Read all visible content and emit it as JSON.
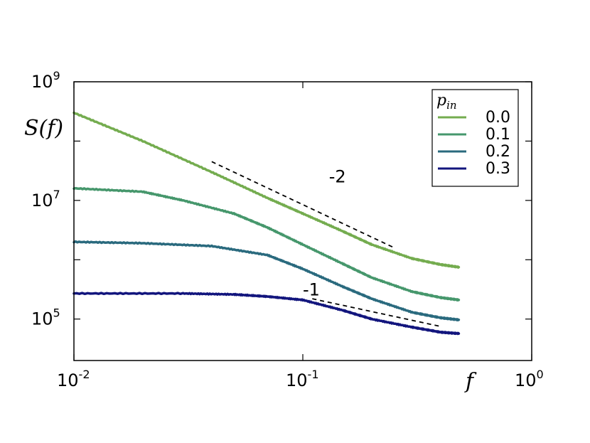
{
  "chart_data": {
    "type": "line",
    "title": "",
    "xlabel": "f",
    "ylabel": "S(f)",
    "xscale": "log",
    "yscale": "log",
    "xlim": [
      0.01,
      1.0
    ],
    "ylim": [
      20000,
      1000000000
    ],
    "x_ticks": [
      {
        "base": "10",
        "exp": "-2",
        "value": 0.01
      },
      {
        "base": "10",
        "exp": "-1",
        "value": 0.1
      },
      {
        "base": "10",
        "exp": "0",
        "value": 1.0
      }
    ],
    "y_ticks": [
      {
        "base": "10",
        "exp": "5",
        "value": 100000
      },
      {
        "base": "10",
        "exp": "7",
        "value": 10000000
      },
      {
        "base": "10",
        "exp": "9",
        "value": 1000000000
      }
    ],
    "legend": {
      "title_base": "p",
      "title_sub": "in",
      "placement": "top-right"
    },
    "series": [
      {
        "name": "0.0",
        "color": "#74ac4f",
        "x": [
          0.01,
          0.02,
          0.04,
          0.07,
          0.1,
          0.15,
          0.2,
          0.3,
          0.4,
          0.48
        ],
        "y": [
          300000000,
          100000000,
          30000000,
          11000000,
          6000000,
          3000000,
          1800000,
          1050000,
          830000,
          750000
        ]
      },
      {
        "name": "0.1",
        "color": "#46976c",
        "x": [
          0.01,
          0.02,
          0.03,
          0.05,
          0.07,
          0.1,
          0.15,
          0.2,
          0.3,
          0.4,
          0.48
        ],
        "y": [
          16000000,
          14000000,
          10000000,
          6000000,
          3500000,
          1800000,
          850000,
          500000,
          290000,
          230000,
          210000
        ]
      },
      {
        "name": "0.2",
        "color": "#2a6a7e",
        "x": [
          0.01,
          0.02,
          0.04,
          0.07,
          0.1,
          0.15,
          0.2,
          0.3,
          0.4,
          0.48
        ],
        "y": [
          2000000,
          1900000,
          1700000,
          1200000,
          700000,
          350000,
          220000,
          130000,
          105000,
          97000
        ]
      },
      {
        "name": "0.3",
        "color": "#12157d",
        "x": [
          0.01,
          0.03,
          0.05,
          0.07,
          0.1,
          0.15,
          0.2,
          0.3,
          0.4,
          0.48
        ],
        "y": [
          270000,
          270000,
          260000,
          240000,
          210000,
          140000,
          100000,
          73000,
          60000,
          57000
        ]
      }
    ],
    "reference_lines": [
      {
        "label": "-2",
        "x": [
          0.04,
          0.25
        ],
        "y": [
          45000000,
          1600000
        ],
        "label_x": 0.13,
        "label_y": 20000000
      },
      {
        "label": "-1",
        "x": [
          0.11,
          0.4
        ],
        "y": [
          220000,
          75000
        ],
        "label_x": 0.1,
        "label_y": 250000
      }
    ]
  }
}
